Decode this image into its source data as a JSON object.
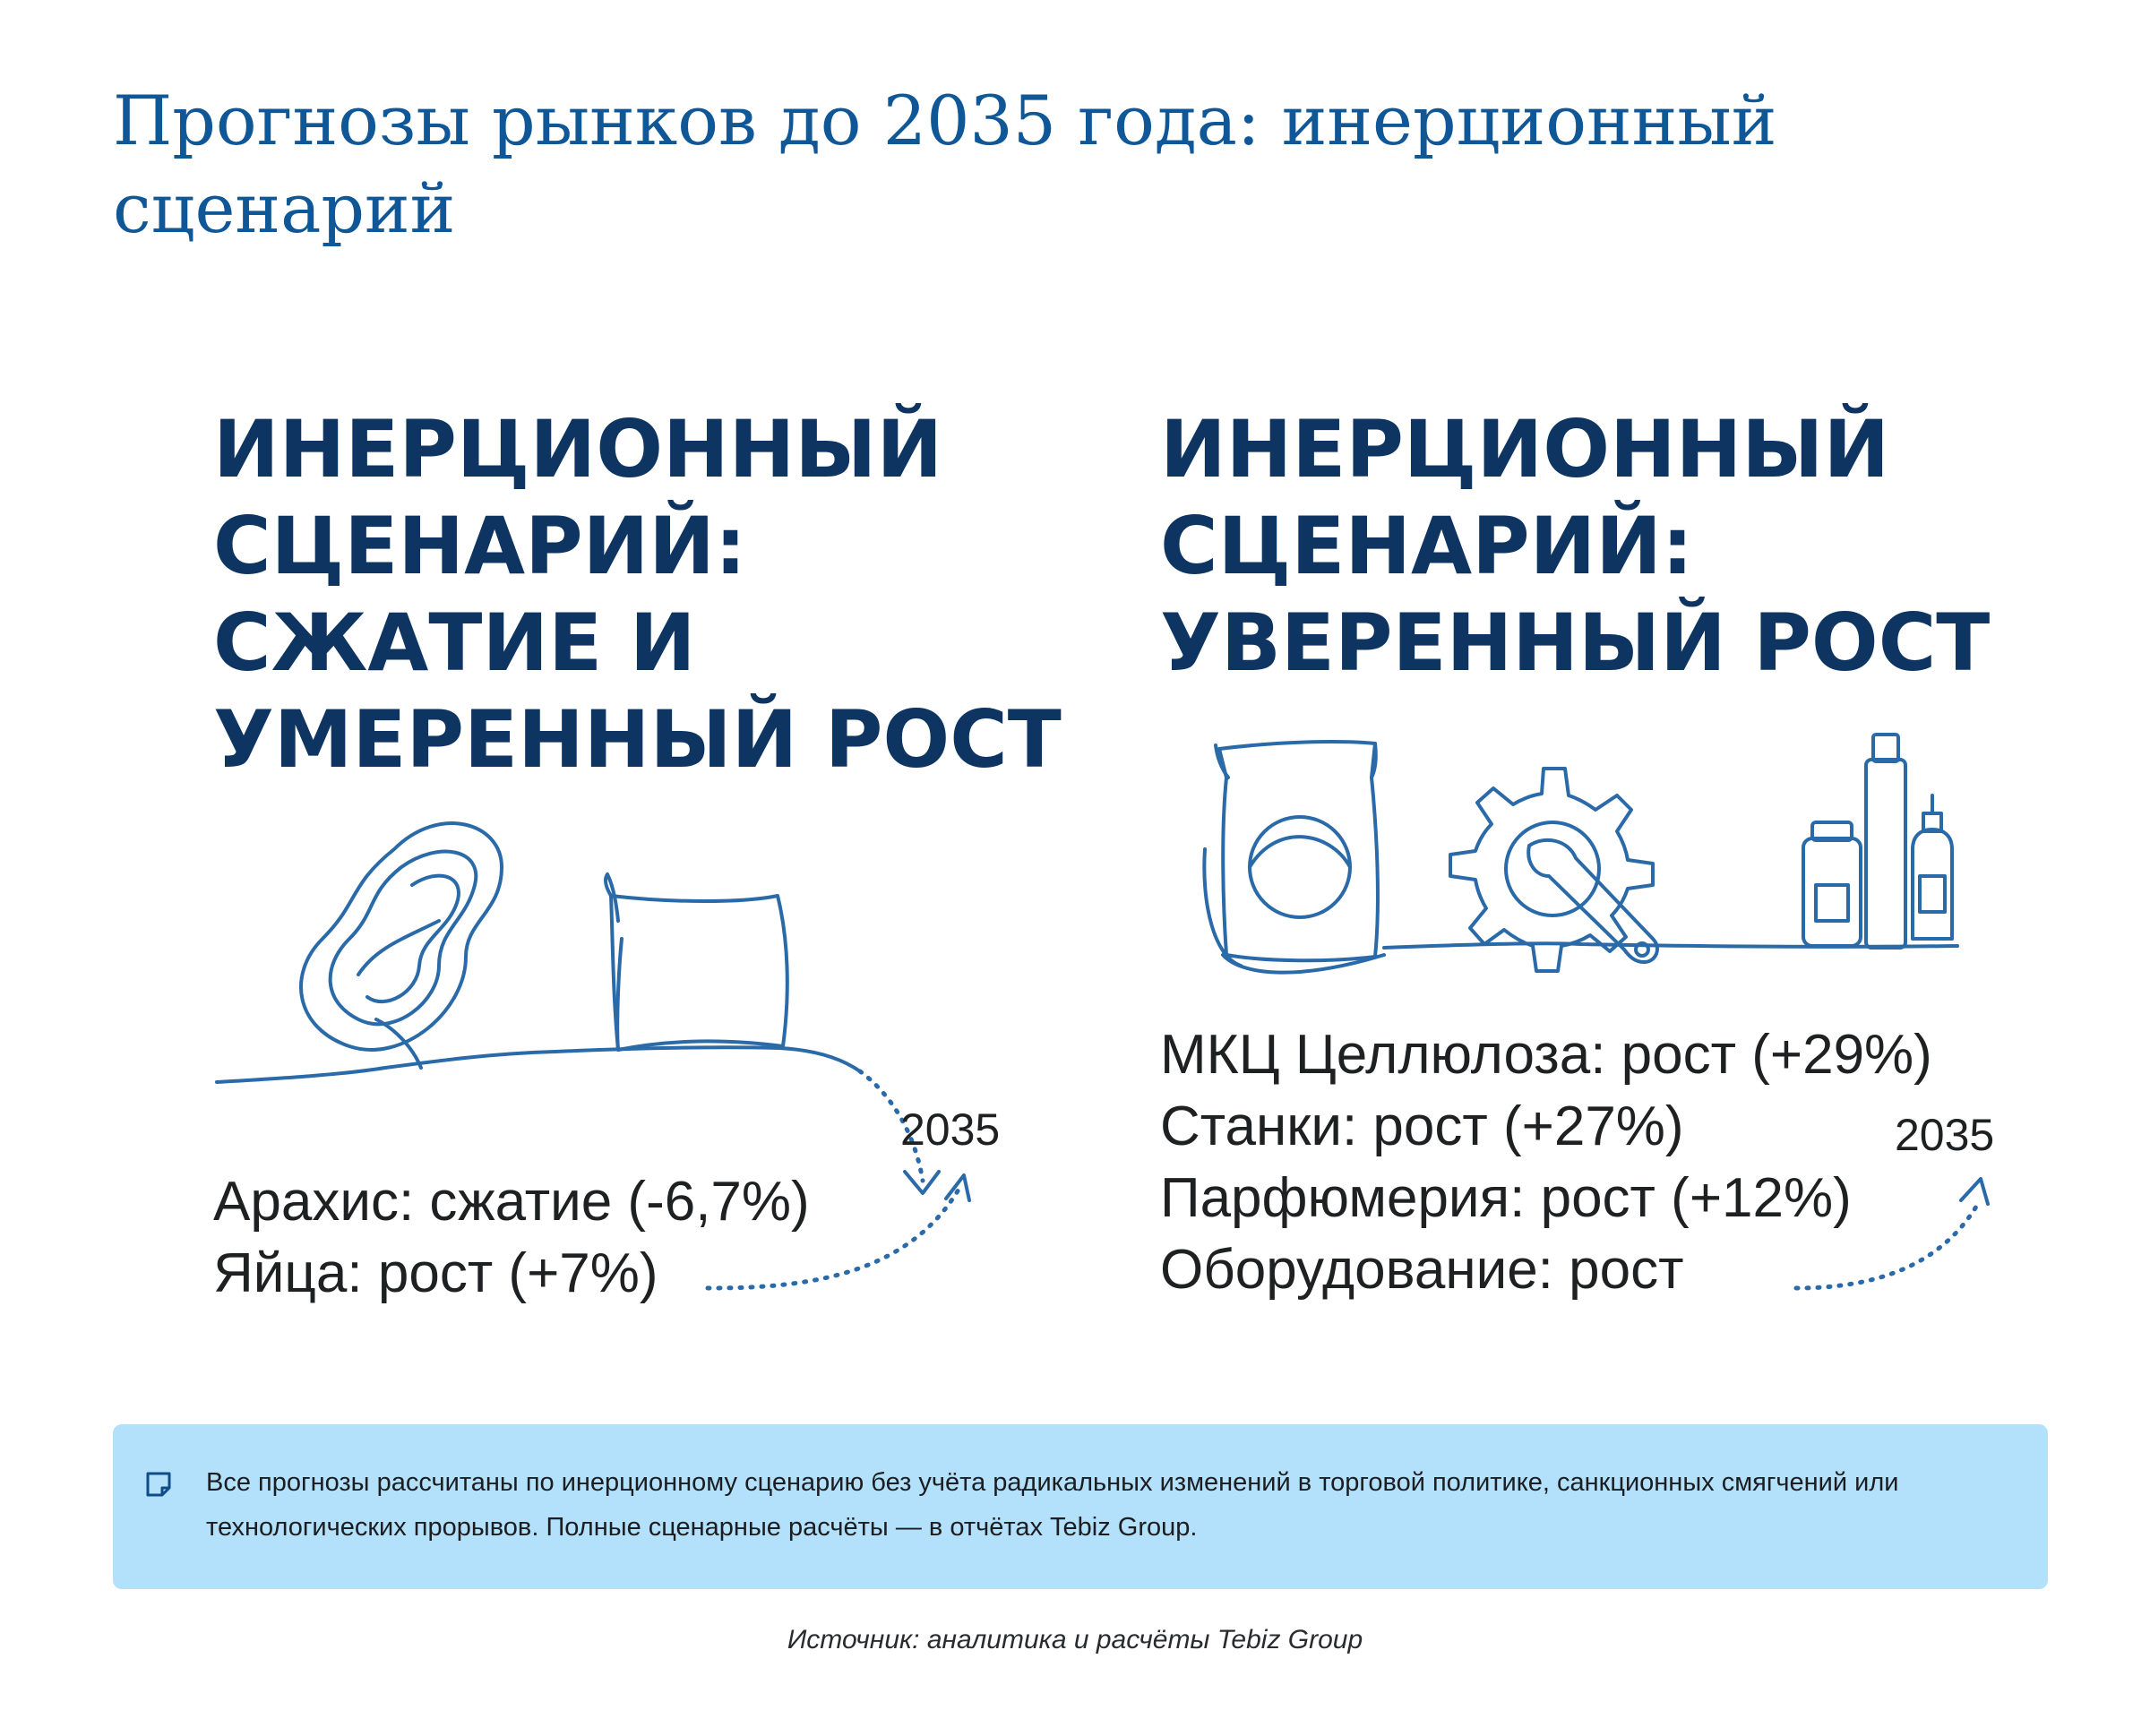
{
  "page": {
    "title": "Прогнозы рынков до 2035 года: инерционный сценарий"
  },
  "panels": [
    {
      "heading_lines": [
        "ИНЕРЦИОННЫЙ",
        "СЦЕНАРИЙ:",
        "СЖАТИЕ И",
        "УМЕРЕННЫЙ РОСТ"
      ],
      "items": [
        "Арахис: сжатие (-6,7%)",
        "Яйца: рост (+7%)"
      ],
      "year": "2035",
      "icons": [
        "peanut-icon",
        "pillow-icon",
        "dotted-arrow-icon"
      ]
    },
    {
      "heading_lines": [
        "ИНЕРЦИОННЫЙ",
        "СЦЕНАРИЙ:",
        "УВЕРЕННЫЙ РОСТ"
      ],
      "items": [
        "МКЦ Целлюлоза: рост (+29%)",
        "Станки: рост (+27%)",
        "Парфюмерия: рост (+12%)",
        "Оборудование: рост"
      ],
      "year": "2035",
      "icons": [
        "package-icon",
        "gear-wrench-icon",
        "bottles-icon",
        "dotted-arrow-icon"
      ]
    }
  ],
  "note": {
    "icon": "note-icon",
    "text": "Все прогнозы рассчитаны по инерционному сценарию без учёта радикальных изменений в торговой политике, санкционных смягчений или технологических прорывов. Полные сценарные расчёты — в отчётах Tebiz Group."
  },
  "source": "Источник: аналитика и расчёты Tebiz Group",
  "colors": {
    "title": "#0f5796",
    "heading": "#0e3562",
    "line_art": "#2a6aa8",
    "note_bg": "#b3e0fb"
  }
}
